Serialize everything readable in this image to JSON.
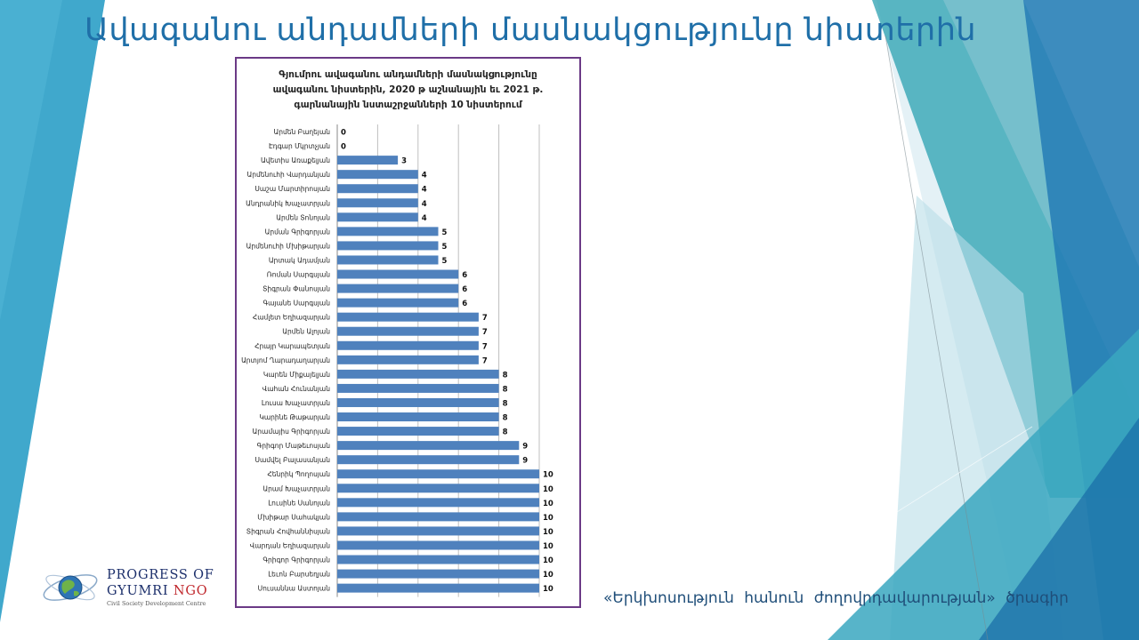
{
  "slide": {
    "title": "Ավագանու անդամների մասնակցությունը նիստերին",
    "program_caption": "«Երկխոսություն  հանուն  ժողովրդավարության»  ծրագիր"
  },
  "logo": {
    "line1": "PROGRESS OF",
    "line2_main": "GYUMRI",
    "line2_accent": "NGO",
    "subtitle": "Civil Society Development Centre",
    "icon": "globe-orbit-icon"
  },
  "colors": {
    "title": "#1f6fa8",
    "bar": "#4f81bd",
    "frame": "#6b3a86",
    "deco_teal": "#2aa0b0",
    "deco_blue": "#1f78b4"
  },
  "chart_data": {
    "type": "bar",
    "orientation": "horizontal",
    "title_lines": [
      "Գյումրու ավագանու անդամների մասնակցությունը",
      "ավագանու նիստերին, 2020 թ աշնանային եւ 2021 թ.",
      "գարնանային նստաշրջանների 10 նիստերում"
    ],
    "categories": [
      "Արմեն Բաղեյան",
      "Էդգար Մկրտչյան",
      "Ավետիս Առաքելյան",
      "Արմենուհի Վարդանյան",
      "Սաշա Մարտիրոսյան",
      "Անդրանիկ Խաչատրյան",
      "Արմեն Տոնոյան",
      "Արման Գրիգորյան",
      "Արմենուհի Մխիթարյան",
      "Արտակ Ադամյան",
      "Ռոման Սարգսյան",
      "Տիգրան Փանոսյան",
      "Գայանե Սարգսյան",
      "Համլետ Եղիազարյան",
      "Արմեն Ալոյան",
      "Հրայր Կարապետյան",
      "Արտյոմ Ղարադաղարյան",
      "Կարեն Միքայելյան",
      "Վահան Հունանյան",
      "Լուսա Խաչատրյան",
      "Կարինե Թաթարյան",
      "Արամայիս Գրիգորյան",
      "Գրիգոր Մաթեւոսյան",
      "Սամվել Բալասանյան",
      "Հենրիկ Պողոսյան",
      "Արամ Խաչատրյան",
      "Լուսինե Սանոյան",
      "Մխիթար Սահակյան",
      "Տիգրան Հովհաննիսյան",
      "Վարդան Եղիազարյան",
      "Գրիգոր Գրիգորյան",
      "Լեւոն Բարսեղյան",
      "Սուսաննա Աստոյան"
    ],
    "values": [
      0,
      0,
      3,
      4,
      4,
      4,
      4,
      5,
      5,
      5,
      6,
      6,
      6,
      7,
      7,
      7,
      7,
      8,
      8,
      8,
      8,
      8,
      9,
      9,
      10,
      10,
      10,
      10,
      10,
      10,
      10,
      10,
      10
    ],
    "xlim": [
      0,
      11
    ],
    "x_gridline_step": 2,
    "grid": true,
    "data_labels": true,
    "legend": "none"
  }
}
